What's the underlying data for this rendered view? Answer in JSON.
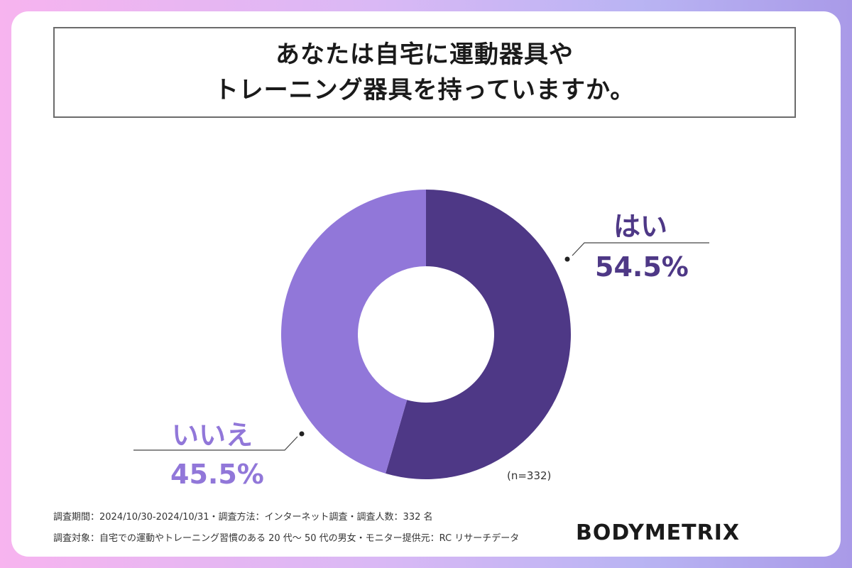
{
  "title": {
    "line1": "あなたは自宅に運動器具や",
    "line2": "トレーニング器具を持っていますか。"
  },
  "chart_data": {
    "type": "pie",
    "style": "donut",
    "categories": [
      "はい",
      "いいえ"
    ],
    "values": [
      54.5,
      45.5
    ],
    "value_labels": [
      "54.5%",
      "45.5%"
    ],
    "colors": [
      "#4e3886",
      "#9177d9"
    ],
    "sample_note": "(n=332)"
  },
  "footer": {
    "line1": "調査期間：2024/10/30-2024/10/31・調査方法：インターネット調査・調査人数：332 名",
    "line2": "調査対象：自宅での運動やトレーニング習慣のある 20 代〜 50 代の男女・モニター提供元：RC リサーチデータ"
  },
  "brand": {
    "logo_text": "BODYMETRIX"
  }
}
